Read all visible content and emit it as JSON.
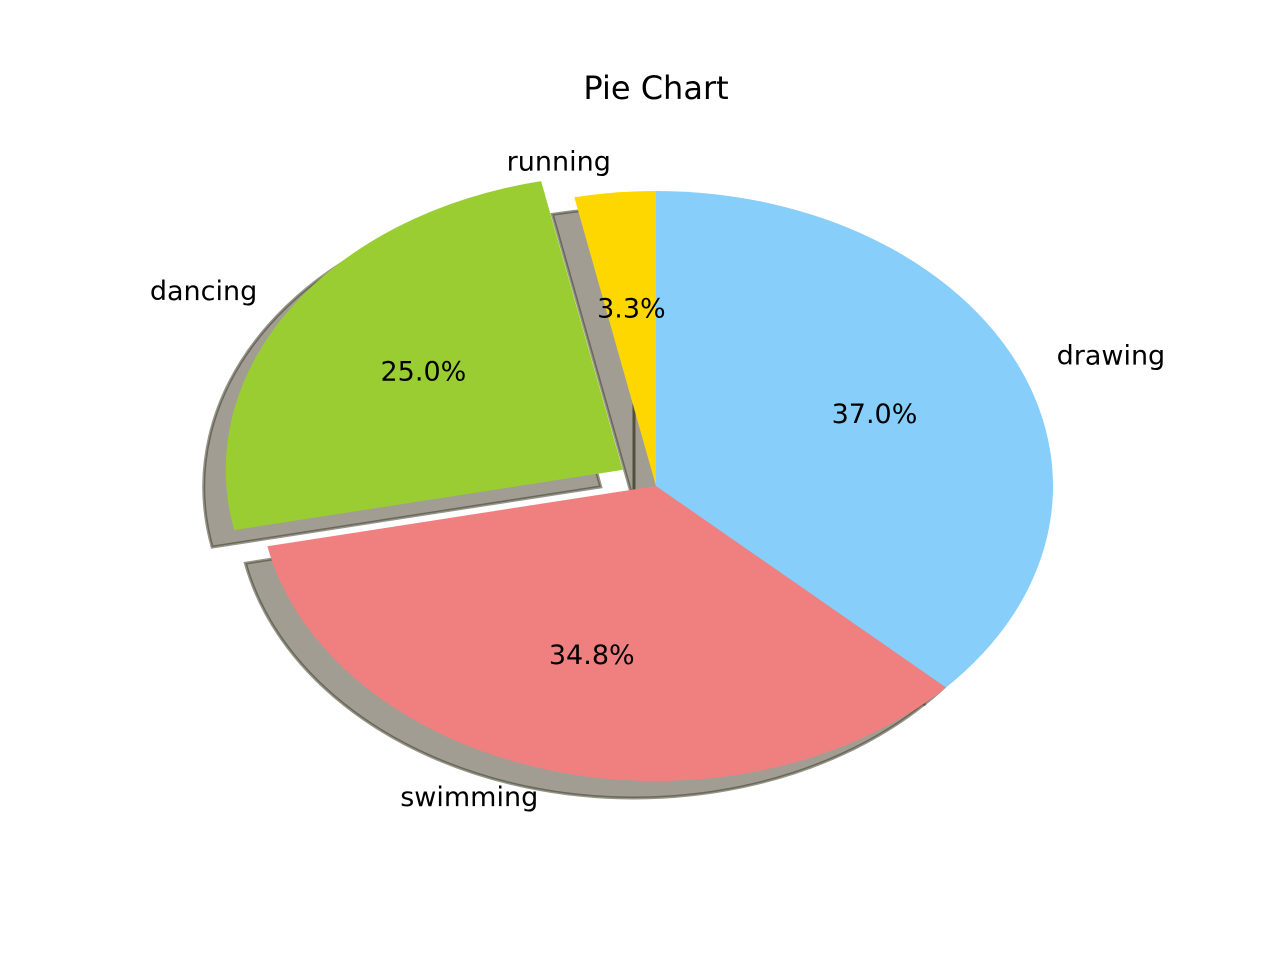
{
  "chart_data": {
    "type": "pie",
    "title": "Pie Chart",
    "shadow": true,
    "start_angle_deg": 90,
    "direction": "counterclockwise",
    "slices": [
      {
        "label": "running",
        "value": 3.3,
        "pct_label": "3.3%",
        "color": "#FFD700",
        "explode": 0
      },
      {
        "label": "dancing",
        "value": 25.0,
        "pct_label": "25.0%",
        "color": "#9ACD32",
        "explode": 0.1
      },
      {
        "label": "swimming",
        "value": 34.8,
        "pct_label": "34.8%",
        "color": "#F08080",
        "explode": 0
      },
      {
        "label": "drawing",
        "value": 37.0,
        "pct_label": "37.0%",
        "color": "#87CEFA",
        "explode": 0
      }
    ]
  }
}
